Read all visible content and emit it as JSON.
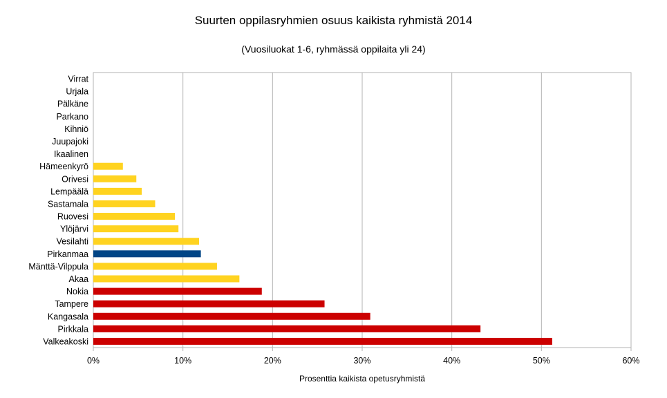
{
  "chart_data": {
    "type": "bar",
    "orientation": "horizontal",
    "title": "Suurten oppilasryhmien osuus kaikista ryhmistä 2014",
    "subtitle": "(Vuosiluokat 1-6, ryhmässä oppilaita yli 24)",
    "xlabel": "Prosenttia kaikista opetusryhmistä",
    "ylabel": "",
    "xlim": [
      0,
      60
    ],
    "xticks": [
      0,
      10,
      20,
      30,
      40,
      50,
      60
    ],
    "xtick_labels": [
      "0%",
      "10%",
      "20%",
      "30%",
      "40%",
      "50%",
      "60%"
    ],
    "grid": true,
    "legend": "none",
    "categories": [
      "Valkeakoski",
      "Pirkkala",
      "Kangasala",
      "Tampere",
      "Nokia",
      "Akaa",
      "Mänttä-Vilppula",
      "Pirkanmaa",
      "Vesilahti",
      "Ylöjärvi",
      "Ruovesi",
      "Sastamala",
      "Lempäälä",
      "Orivesi",
      "Hämeenkyrö",
      "Ikaalinen",
      "Juupajoki",
      "Kihniö",
      "Parkano",
      "Pälkäne",
      "Urjala",
      "Virrat"
    ],
    "values": [
      51.2,
      43.2,
      30.9,
      25.8,
      18.8,
      16.3,
      13.8,
      12.0,
      11.8,
      9.5,
      9.1,
      6.9,
      5.4,
      4.8,
      3.3,
      0,
      0,
      0,
      0,
      0,
      0,
      0
    ],
    "bar_colors": [
      "#cc0000",
      "#cc0000",
      "#cc0000",
      "#cc0000",
      "#cc0000",
      "#ffd320",
      "#ffd320",
      "#004586",
      "#ffd320",
      "#ffd320",
      "#ffd320",
      "#ffd320",
      "#ffd320",
      "#ffd320",
      "#ffd320",
      "#ffd320",
      "#ffd320",
      "#ffd320",
      "#ffd320",
      "#ffd320",
      "#ffd320",
      "#ffd320"
    ]
  }
}
